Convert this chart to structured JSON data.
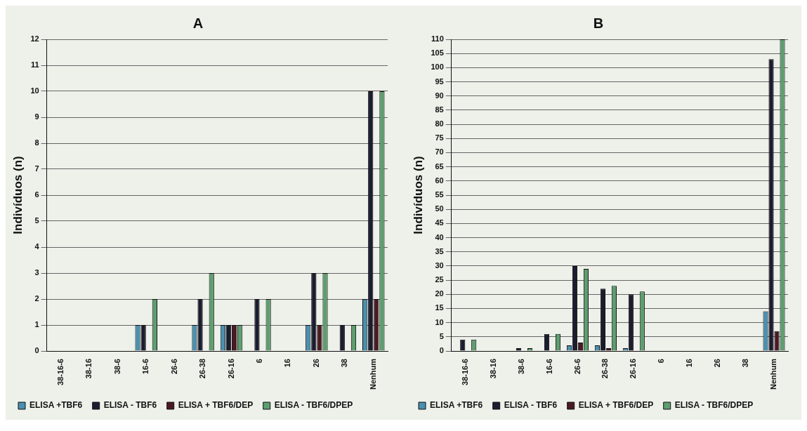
{
  "chart_data": [
    {
      "type": "bar",
      "title": "A",
      "ylabel": "Indivíduos (n)",
      "categories": [
        "38-16-6",
        "38-16",
        "38-6",
        "16-6",
        "26-6",
        "26-38",
        "26-16",
        "6",
        "16",
        "26",
        "38",
        "Nenhum"
      ],
      "series": [
        {
          "name": "ELISA +TBF6",
          "color": "#4a90b0",
          "values": [
            0,
            0,
            0,
            1,
            0,
            1,
            1,
            0,
            0,
            1,
            0,
            2
          ]
        },
        {
          "name": "ELISA - TBF6",
          "color": "#1c1c30",
          "values": [
            0,
            0,
            0,
            1,
            0,
            2,
            1,
            2,
            0,
            3,
            1,
            10
          ]
        },
        {
          "name": "ELISA + TBF6/DEP",
          "color": "#4a1a22",
          "values": [
            0,
            0,
            0,
            0,
            0,
            0,
            1,
            0,
            0,
            1,
            0,
            2
          ]
        },
        {
          "name": "ELISA - TBF6/DPEP",
          "color": "#5e9e70",
          "values": [
            0,
            0,
            0,
            2,
            0,
            3,
            1,
            2,
            0,
            3,
            1,
            10
          ]
        }
      ],
      "ylim": [
        0,
        12
      ],
      "yticks": [
        0,
        1,
        2,
        3,
        4,
        5,
        6,
        7,
        8,
        9,
        10,
        11,
        12
      ],
      "grid": "y",
      "legend": "bottom"
    },
    {
      "type": "bar",
      "title": "B",
      "ylabel": "Indivíduos (n)",
      "categories": [
        "38-16-6",
        "38-16",
        "38-6",
        "16-6",
        "26-6",
        "26-38",
        "26-16",
        "6",
        "16",
        "26",
        "38",
        "Nenhum"
      ],
      "series": [
        {
          "name": "ELISA +TBF6",
          "color": "#4a90b0",
          "values": [
            0,
            0,
            0,
            0,
            2,
            2,
            1,
            0,
            0,
            0,
            0,
            14
          ]
        },
        {
          "name": "ELISA - TBF6",
          "color": "#1c1c30",
          "values": [
            4,
            0,
            1,
            6,
            30,
            22,
            20,
            0,
            0,
            0,
            0,
            103
          ]
        },
        {
          "name": "ELISA + TBF6/DEP",
          "color": "#4a1a22",
          "values": [
            0,
            0,
            0,
            0,
            3,
            1,
            0,
            0,
            0,
            0,
            0,
            7
          ]
        },
        {
          "name": "ELISA - TBF6/DPEP",
          "color": "#5e9e70",
          "values": [
            4,
            0,
            1,
            6,
            29,
            23,
            21,
            0,
            0,
            0,
            0,
            110
          ]
        }
      ],
      "ylim": [
        0,
        110
      ],
      "yticks": [
        0,
        5,
        10,
        15,
        20,
        25,
        30,
        35,
        40,
        45,
        50,
        55,
        60,
        65,
        70,
        75,
        80,
        85,
        90,
        95,
        100,
        105,
        110
      ],
      "grid": "y",
      "legend": "bottom"
    }
  ]
}
